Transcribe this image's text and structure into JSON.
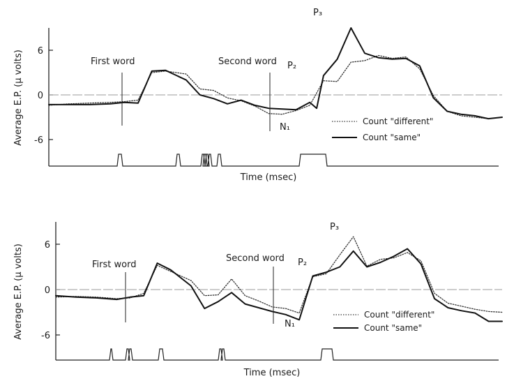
{
  "chart_data": [
    {
      "type": "line",
      "ylabel": "Average E.P. (µ volts)",
      "xlabel": "Time (msec)",
      "yticks": [
        "6",
        "0",
        "-6"
      ],
      "ylim": [
        -10,
        10
      ],
      "grid": false,
      "legend_position": "bottom-right",
      "annotations": {
        "first_word": "First word",
        "second_word": "Second word",
        "p2": "P₂",
        "p3": "P₃",
        "n1": "N₁"
      },
      "series": [
        {
          "name": "Count \"different\"",
          "style": "dotted",
          "color": "#333333",
          "x": [
            0,
            30,
            60,
            90,
            110,
            130,
            150,
            170,
            200,
            220,
            240,
            260,
            280,
            300,
            320,
            340,
            360,
            380,
            400,
            420,
            440,
            460,
            480,
            500,
            520,
            540,
            560,
            580,
            600,
            620,
            640,
            660
          ],
          "y": [
            -1.4,
            -1.2,
            -1.1,
            -1.0,
            -0.9,
            -0.7,
            3.0,
            3.2,
            2.8,
            0.8,
            0.6,
            -0.4,
            -0.8,
            -1.5,
            -2.5,
            -2.6,
            -2.1,
            -1.4,
            1.9,
            1.8,
            4.4,
            4.6,
            5.3,
            4.9,
            5.1,
            3.5,
            -0.1,
            -2.2,
            -2.8,
            -3.0,
            -3.2,
            -3.0
          ]
        },
        {
          "name": "Count \"same\"",
          "style": "solid",
          "color": "#111111",
          "x": [
            0,
            30,
            60,
            90,
            110,
            130,
            150,
            170,
            200,
            220,
            240,
            260,
            280,
            300,
            320,
            340,
            360,
            380,
            390,
            400,
            420,
            440,
            460,
            480,
            500,
            520,
            540,
            560,
            580,
            600,
            620,
            640,
            660
          ],
          "y": [
            -1.3,
            -1.3,
            -1.3,
            -1.2,
            -1.0,
            -1.1,
            3.2,
            3.3,
            2.0,
            0.0,
            -0.5,
            -1.2,
            -0.7,
            -1.4,
            -1.8,
            -1.9,
            -2.0,
            -1.0,
            -1.8,
            2.6,
            4.8,
            9.0,
            5.6,
            5.0,
            4.8,
            4.9,
            3.9,
            -0.4,
            -2.2,
            -2.6,
            -2.8,
            -3.2,
            -3.0
          ]
        }
      ],
      "stimulus_trace": "events"
    },
    {
      "type": "line",
      "ylabel": "Average E.P. (µ volts)",
      "xlabel": "Time (msec)",
      "yticks": [
        "6",
        "0",
        "-6"
      ],
      "ylim": [
        -10,
        10
      ],
      "grid": false,
      "legend_position": "bottom-right",
      "annotations": {
        "first_word": "First word",
        "second_word": "Second word",
        "p2": "P₂",
        "p3": "P₃",
        "n1": "N₁"
      },
      "series": [
        {
          "name": "Count \"different\"",
          "style": "dotted",
          "color": "#333333",
          "x": [
            0,
            30,
            60,
            90,
            110,
            130,
            150,
            170,
            200,
            220,
            240,
            260,
            280,
            300,
            320,
            340,
            360,
            380,
            400,
            420,
            440,
            460,
            480,
            500,
            520,
            540,
            560,
            580,
            600,
            620,
            640,
            660
          ],
          "y": [
            -1.0,
            -0.9,
            -1.0,
            -1.2,
            -1.1,
            -0.5,
            3.2,
            2.4,
            1.2,
            -0.8,
            -0.7,
            1.4,
            -0.8,
            -1.5,
            -2.3,
            -2.5,
            -3.1,
            1.7,
            2.1,
            4.6,
            7.0,
            3.1,
            4.0,
            4.2,
            4.9,
            3.8,
            -0.5,
            -1.8,
            -2.2,
            -2.6,
            -2.9,
            -3.0
          ]
        },
        {
          "name": "Count \"same\"",
          "style": "solid",
          "color": "#111111",
          "x": [
            0,
            30,
            60,
            90,
            110,
            130,
            150,
            170,
            200,
            220,
            240,
            260,
            280,
            300,
            320,
            340,
            360,
            380,
            400,
            420,
            440,
            460,
            480,
            500,
            520,
            540,
            560,
            580,
            600,
            620,
            640,
            660
          ],
          "y": [
            -0.8,
            -1.0,
            -1.1,
            -1.3,
            -1.0,
            -0.8,
            3.5,
            2.6,
            0.5,
            -2.5,
            -1.6,
            -0.4,
            -1.9,
            -2.4,
            -2.9,
            -3.3,
            -4.0,
            1.8,
            2.3,
            3.0,
            5.1,
            3.0,
            3.6,
            4.4,
            5.4,
            3.4,
            -1.2,
            -2.4,
            -2.8,
            -3.1,
            -4.2,
            -4.2
          ]
        }
      ],
      "stimulus_trace": "events"
    }
  ]
}
